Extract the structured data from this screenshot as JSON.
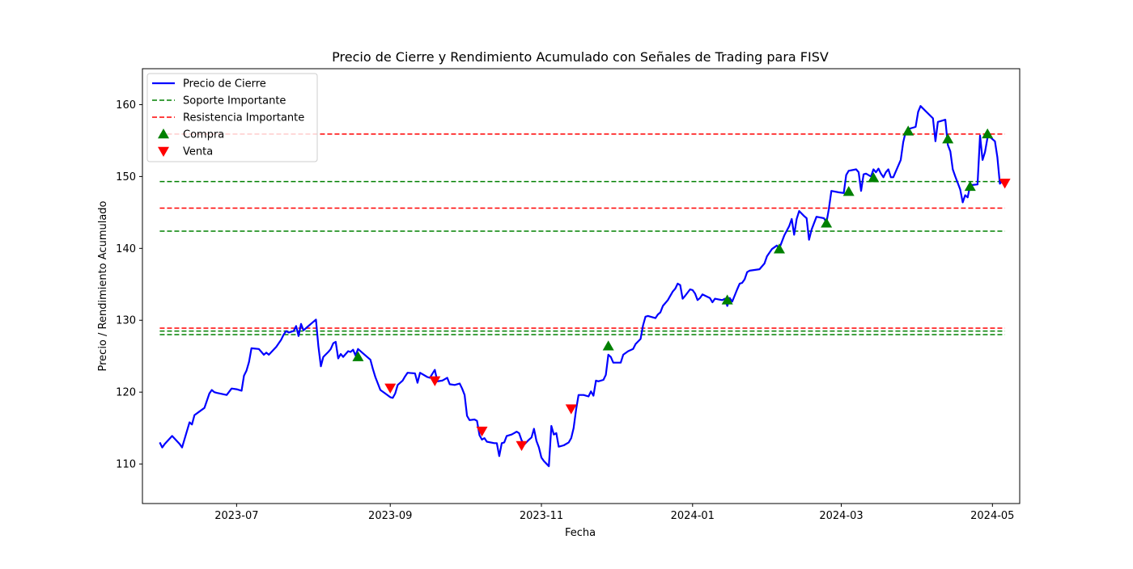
{
  "chart_data": {
    "type": "line",
    "title": "Precio de Cierre y Rendimiento Acumulado con Señales de Trading para FISV",
    "xlabel": "Fecha",
    "ylabel": "Precio / Rendimiento Acumulado",
    "xlim": [
      "2023-05-24",
      "2024-05-12"
    ],
    "ylim": [
      104.5,
      165.0
    ],
    "x_ticks": [
      "2023-07",
      "2023-09",
      "2023-11",
      "2024-01",
      "2024-03",
      "2024-05"
    ],
    "y_ticks": [
      110,
      120,
      130,
      140,
      150,
      160
    ],
    "grid": false,
    "legend_position": "upper left",
    "legend": [
      {
        "label": "Precio de Cierre",
        "kind": "line",
        "color": "#0000ff"
      },
      {
        "label": "Soporte Importante",
        "kind": "dashed",
        "color": "#008000"
      },
      {
        "label": "Resistencia Importante",
        "kind": "dashed",
        "color": "#ff0000"
      },
      {
        "label": "Compra",
        "kind": "triangle-up",
        "color": "#008000"
      },
      {
        "label": "Venta",
        "kind": "triangle-down",
        "color": "#ff0000"
      }
    ],
    "series": [
      {
        "name": "Precio de Cierre",
        "color": "#0000ff",
        "points": [
          [
            "2023-05-31",
            113.0
          ],
          [
            "2023-06-01",
            112.3
          ],
          [
            "2023-06-02",
            112.8
          ],
          [
            "2023-06-05",
            113.9
          ],
          [
            "2023-06-08",
            112.8
          ],
          [
            "2023-06-09",
            112.3
          ],
          [
            "2023-06-12",
            115.8
          ],
          [
            "2023-06-13",
            115.5
          ],
          [
            "2023-06-14",
            116.8
          ],
          [
            "2023-06-16",
            117.3
          ],
          [
            "2023-06-18",
            117.8
          ],
          [
            "2023-06-20",
            119.8
          ],
          [
            "2023-06-21",
            120.3
          ],
          [
            "2023-06-22",
            120.0
          ],
          [
            "2023-06-23",
            119.9
          ],
          [
            "2023-06-27",
            119.6
          ],
          [
            "2023-06-29",
            120.5
          ],
          [
            "2023-07-01",
            120.4
          ],
          [
            "2023-07-03",
            120.2
          ],
          [
            "2023-07-04",
            122.3
          ],
          [
            "2023-07-05",
            123.0
          ],
          [
            "2023-07-06",
            124.2
          ],
          [
            "2023-07-07",
            126.1
          ],
          [
            "2023-07-10",
            126.0
          ],
          [
            "2023-07-12",
            125.2
          ],
          [
            "2023-07-13",
            125.5
          ],
          [
            "2023-07-14",
            125.2
          ],
          [
            "2023-07-17",
            126.3
          ],
          [
            "2023-07-18",
            126.8
          ],
          [
            "2023-07-19",
            127.3
          ],
          [
            "2023-07-20",
            128.0
          ],
          [
            "2023-07-21",
            128.5
          ],
          [
            "2023-07-22",
            128.3
          ],
          [
            "2023-07-24",
            128.5
          ],
          [
            "2023-07-25",
            129.2
          ],
          [
            "2023-07-26",
            127.8
          ],
          [
            "2023-07-27",
            129.5
          ],
          [
            "2023-07-28",
            128.6
          ],
          [
            "2023-07-31",
            129.5
          ],
          [
            "2023-08-02",
            130.1
          ],
          [
            "2023-08-03",
            126.4
          ],
          [
            "2023-08-04",
            123.6
          ],
          [
            "2023-08-05",
            124.9
          ],
          [
            "2023-08-07",
            125.6
          ],
          [
            "2023-08-08",
            126.0
          ],
          [
            "2023-08-09",
            126.8
          ],
          [
            "2023-08-10",
            127.0
          ],
          [
            "2023-08-11",
            124.7
          ],
          [
            "2023-08-12",
            125.3
          ],
          [
            "2023-08-13",
            124.9
          ],
          [
            "2023-08-15",
            125.7
          ],
          [
            "2023-08-16",
            125.6
          ],
          [
            "2023-08-17",
            125.9
          ],
          [
            "2023-08-18",
            125.1
          ],
          [
            "2023-08-19",
            126.0
          ],
          [
            "2023-08-22",
            125.1
          ],
          [
            "2023-08-24",
            124.5
          ],
          [
            "2023-08-25",
            123.2
          ],
          [
            "2023-08-26",
            122.1
          ],
          [
            "2023-08-28",
            120.3
          ],
          [
            "2023-08-30",
            119.8
          ],
          [
            "2023-09-01",
            119.3
          ],
          [
            "2023-09-02",
            119.2
          ],
          [
            "2023-09-03",
            119.8
          ],
          [
            "2023-09-04",
            121.0
          ],
          [
            "2023-09-06",
            121.6
          ],
          [
            "2023-09-07",
            122.2
          ],
          [
            "2023-09-08",
            122.7
          ],
          [
            "2023-09-11",
            122.6
          ],
          [
            "2023-09-12",
            121.3
          ],
          [
            "2023-09-13",
            122.7
          ],
          [
            "2023-09-16",
            122.1
          ],
          [
            "2023-09-17",
            122.0
          ],
          [
            "2023-09-19",
            123.1
          ],
          [
            "2023-09-20",
            121.5
          ],
          [
            "2023-09-22",
            121.6
          ],
          [
            "2023-09-24",
            122.0
          ],
          [
            "2023-09-25",
            121.1
          ],
          [
            "2023-09-27",
            121.0
          ],
          [
            "2023-09-28",
            121.1
          ],
          [
            "2023-09-29",
            121.2
          ],
          [
            "2023-09-30",
            120.5
          ],
          [
            "2023-10-01",
            119.6
          ],
          [
            "2023-10-02",
            116.7
          ],
          [
            "2023-10-03",
            116.1
          ],
          [
            "2023-10-05",
            116.2
          ],
          [
            "2023-10-06",
            116.0
          ],
          [
            "2023-10-07",
            114.0
          ],
          [
            "2023-10-08",
            113.4
          ],
          [
            "2023-10-09",
            113.6
          ],
          [
            "2023-10-10",
            113.1
          ],
          [
            "2023-10-13",
            112.9
          ],
          [
            "2023-10-14",
            112.9
          ],
          [
            "2023-10-15",
            111.1
          ],
          [
            "2023-10-16",
            112.9
          ],
          [
            "2023-10-17",
            113.0
          ],
          [
            "2023-10-18",
            113.9
          ],
          [
            "2023-10-20",
            114.1
          ],
          [
            "2023-10-22",
            114.5
          ],
          [
            "2023-10-23",
            114.3
          ],
          [
            "2023-10-24",
            113.3
          ],
          [
            "2023-10-25",
            112.7
          ],
          [
            "2023-10-27",
            113.4
          ],
          [
            "2023-10-28",
            113.7
          ],
          [
            "2023-10-29",
            114.9
          ],
          [
            "2023-10-30",
            113.2
          ],
          [
            "2023-10-31",
            112.3
          ],
          [
            "2023-11-01",
            110.9
          ],
          [
            "2023-11-02",
            110.4
          ],
          [
            "2023-11-04",
            109.7
          ],
          [
            "2023-11-05",
            115.3
          ],
          [
            "2023-11-06",
            114.1
          ],
          [
            "2023-11-07",
            114.3
          ],
          [
            "2023-11-08",
            112.4
          ],
          [
            "2023-11-10",
            112.6
          ],
          [
            "2023-11-12",
            113.0
          ],
          [
            "2023-11-13",
            113.6
          ],
          [
            "2023-11-14",
            115.0
          ],
          [
            "2023-11-15",
            117.6
          ],
          [
            "2023-11-16",
            119.6
          ],
          [
            "2023-11-18",
            119.6
          ],
          [
            "2023-11-20",
            119.4
          ],
          [
            "2023-11-21",
            120.1
          ],
          [
            "2023-11-22",
            119.5
          ],
          [
            "2023-11-23",
            121.6
          ],
          [
            "2023-11-24",
            121.5
          ],
          [
            "2023-11-26",
            121.7
          ],
          [
            "2023-11-27",
            122.4
          ],
          [
            "2023-11-28",
            125.2
          ],
          [
            "2023-11-29",
            124.9
          ],
          [
            "2023-11-30",
            124.1
          ],
          [
            "2023-12-01",
            124.1
          ],
          [
            "2023-12-03",
            124.1
          ],
          [
            "2023-12-04",
            125.2
          ],
          [
            "2023-12-06",
            125.7
          ],
          [
            "2023-12-08",
            126.0
          ],
          [
            "2023-12-09",
            126.7
          ],
          [
            "2023-12-11",
            127.4
          ],
          [
            "2023-12-12",
            129.3
          ],
          [
            "2023-12-13",
            130.5
          ],
          [
            "2023-12-14",
            130.6
          ],
          [
            "2023-12-17",
            130.3
          ],
          [
            "2023-12-18",
            130.8
          ],
          [
            "2023-12-19",
            131.1
          ],
          [
            "2023-12-20",
            132.0
          ],
          [
            "2023-12-22",
            132.8
          ],
          [
            "2023-12-24",
            134.0
          ],
          [
            "2023-12-25",
            134.4
          ],
          [
            "2023-12-26",
            135.1
          ],
          [
            "2023-12-27",
            134.9
          ],
          [
            "2023-12-28",
            133.0
          ],
          [
            "2023-12-29",
            133.4
          ],
          [
            "2023-12-31",
            134.3
          ],
          [
            "2024-01-01",
            134.2
          ],
          [
            "2024-01-02",
            133.7
          ],
          [
            "2024-01-03",
            132.8
          ],
          [
            "2024-01-04",
            133.1
          ],
          [
            "2024-01-05",
            133.6
          ],
          [
            "2024-01-08",
            133.1
          ],
          [
            "2024-01-09",
            132.5
          ],
          [
            "2024-01-10",
            133.0
          ],
          [
            "2024-01-13",
            132.8
          ],
          [
            "2024-01-14",
            133.0
          ],
          [
            "2024-01-15",
            132.0
          ],
          [
            "2024-01-16",
            133.1
          ],
          [
            "2024-01-17",
            132.6
          ],
          [
            "2024-01-19",
            134.3
          ],
          [
            "2024-01-20",
            135.1
          ],
          [
            "2024-01-21",
            135.2
          ],
          [
            "2024-01-22",
            135.7
          ],
          [
            "2024-01-23",
            136.7
          ],
          [
            "2024-01-24",
            136.9
          ],
          [
            "2024-01-28",
            137.1
          ],
          [
            "2024-01-30",
            137.9
          ],
          [
            "2024-01-31",
            138.9
          ],
          [
            "2024-02-02",
            139.9
          ],
          [
            "2024-02-04",
            140.4
          ],
          [
            "2024-02-05",
            140.0
          ],
          [
            "2024-02-07",
            141.8
          ],
          [
            "2024-02-09",
            143.1
          ],
          [
            "2024-02-10",
            144.1
          ],
          [
            "2024-02-11",
            141.9
          ],
          [
            "2024-02-12",
            144.1
          ],
          [
            "2024-02-13",
            145.2
          ],
          [
            "2024-02-15",
            144.5
          ],
          [
            "2024-02-16",
            144.2
          ],
          [
            "2024-02-17",
            141.2
          ],
          [
            "2024-02-18",
            142.6
          ],
          [
            "2024-02-20",
            144.4
          ],
          [
            "2024-02-23",
            144.2
          ],
          [
            "2024-02-24",
            143.6
          ],
          [
            "2024-02-25",
            145.5
          ],
          [
            "2024-02-26",
            148.0
          ],
          [
            "2024-02-29",
            147.8
          ],
          [
            "2024-03-02",
            147.7
          ],
          [
            "2024-03-03",
            150.2
          ],
          [
            "2024-03-04",
            150.8
          ],
          [
            "2024-03-07",
            151.0
          ],
          [
            "2024-03-08",
            150.6
          ],
          [
            "2024-03-09",
            148.0
          ],
          [
            "2024-03-10",
            150.3
          ],
          [
            "2024-03-11",
            150.4
          ],
          [
            "2024-03-13",
            150.0
          ],
          [
            "2024-03-14",
            151.0
          ],
          [
            "2024-03-15",
            150.6
          ],
          [
            "2024-03-16",
            151.1
          ],
          [
            "2024-03-17",
            150.4
          ],
          [
            "2024-03-18",
            149.9
          ],
          [
            "2024-03-19",
            150.6
          ],
          [
            "2024-03-20",
            151.0
          ],
          [
            "2024-03-21",
            149.9
          ],
          [
            "2024-03-22",
            149.9
          ],
          [
            "2024-03-25",
            152.3
          ],
          [
            "2024-03-26",
            154.8
          ],
          [
            "2024-03-27",
            156.2
          ],
          [
            "2024-03-28",
            156.6
          ],
          [
            "2024-03-31",
            156.9
          ],
          [
            "2024-04-01",
            159.0
          ],
          [
            "2024-04-02",
            159.8
          ],
          [
            "2024-04-07",
            158.1
          ],
          [
            "2024-04-08",
            154.9
          ],
          [
            "2024-04-09",
            157.6
          ],
          [
            "2024-04-10",
            157.7
          ],
          [
            "2024-04-12",
            157.9
          ],
          [
            "2024-04-13",
            154.4
          ],
          [
            "2024-04-14",
            153.5
          ],
          [
            "2024-04-15",
            151.0
          ],
          [
            "2024-04-16",
            150.0
          ],
          [
            "2024-04-18",
            148.2
          ],
          [
            "2024-04-19",
            146.4
          ],
          [
            "2024-04-20",
            147.4
          ],
          [
            "2024-04-21",
            147.1
          ],
          [
            "2024-04-22",
            148.8
          ],
          [
            "2024-04-25",
            148.9
          ],
          [
            "2024-04-26",
            155.7
          ],
          [
            "2024-04-27",
            152.3
          ],
          [
            "2024-04-28",
            153.4
          ],
          [
            "2024-04-29",
            155.4
          ],
          [
            "2024-04-30",
            155.5
          ],
          [
            "2024-05-02",
            154.9
          ],
          [
            "2024-05-03",
            152.7
          ],
          [
            "2024-05-04",
            149.0
          ],
          [
            "2024-05-05",
            149.4
          ],
          [
            "2024-05-06",
            149.5
          ]
        ]
      }
    ],
    "support_levels": [
      149.3,
      142.4,
      128.5,
      128.0
    ],
    "resistance_levels": [
      155.9,
      145.6,
      128.9
    ],
    "level_x_range": [
      "2023-05-31",
      "2024-05-06"
    ],
    "buy_signals": [
      [
        "2023-08-19",
        124.9
      ],
      [
        "2023-11-28",
        126.4
      ],
      [
        "2024-01-15",
        132.8
      ],
      [
        "2024-02-05",
        139.9
      ],
      [
        "2024-02-24",
        143.5
      ],
      [
        "2024-03-04",
        147.9
      ],
      [
        "2024-03-14",
        149.8
      ],
      [
        "2024-03-28",
        156.3
      ],
      [
        "2024-04-13",
        155.2
      ],
      [
        "2024-04-22",
        148.6
      ],
      [
        "2024-04-29",
        155.9
      ]
    ],
    "sell_signals": [
      [
        "2023-09-01",
        120.6
      ],
      [
        "2023-09-19",
        121.6
      ],
      [
        "2023-10-08",
        114.6
      ],
      [
        "2023-10-24",
        112.6
      ],
      [
        "2023-11-13",
        117.7
      ],
      [
        "2024-05-06",
        149.1
      ]
    ]
  }
}
